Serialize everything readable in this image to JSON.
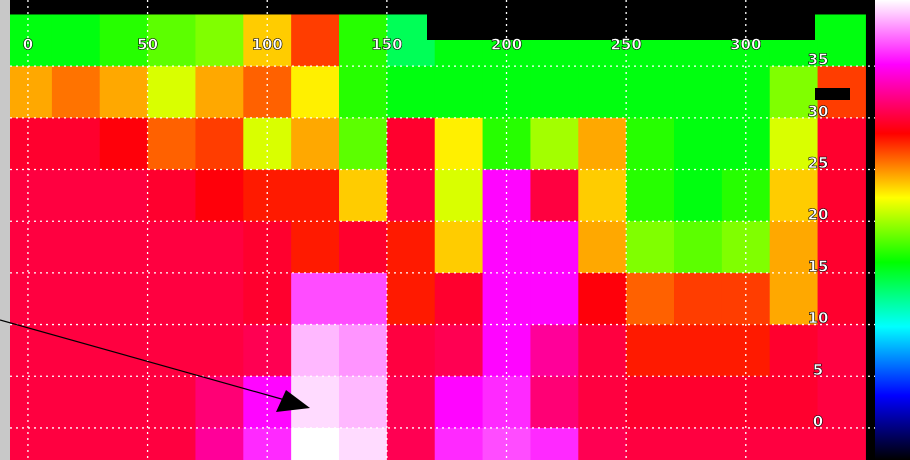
{
  "chart_data": {
    "type": "heatmap",
    "x": [
      0,
      20,
      40,
      60,
      80,
      100,
      120,
      140,
      160,
      180,
      200,
      220,
      240,
      260,
      280,
      300,
      320,
      340
    ],
    "y": [
      37.5,
      32.5,
      27.5,
      22.5,
      17.5,
      12.5,
      7.5,
      2.5,
      -2.5
    ],
    "z": [
      [
        0.42,
        0.42,
        0.45,
        0.48,
        0.5,
        0.6,
        0.68,
        0.45,
        0.38,
        0.42,
        0.42,
        0.42,
        0.42,
        0.42,
        0.42,
        0.42,
        0.42,
        0.42
      ],
      [
        0.62,
        0.65,
        0.62,
        0.55,
        0.62,
        0.66,
        0.58,
        0.45,
        0.42,
        0.42,
        0.42,
        0.42,
        0.42,
        0.42,
        0.42,
        0.42,
        0.5,
        0.68
      ],
      [
        0.74,
        0.74,
        0.72,
        0.66,
        0.68,
        0.55,
        0.62,
        0.48,
        0.74,
        0.58,
        0.45,
        0.52,
        0.62,
        0.45,
        0.42,
        0.42,
        0.55,
        0.74
      ],
      [
        0.75,
        0.75,
        0.75,
        0.74,
        0.72,
        0.7,
        0.7,
        0.6,
        0.75,
        0.55,
        0.86,
        0.75,
        0.6,
        0.45,
        0.42,
        0.45,
        0.6,
        0.74
      ],
      [
        0.75,
        0.75,
        0.75,
        0.75,
        0.75,
        0.74,
        0.7,
        0.74,
        0.7,
        0.6,
        0.86,
        0.86,
        0.62,
        0.5,
        0.48,
        0.5,
        0.62,
        0.74
      ],
      [
        0.75,
        0.75,
        0.75,
        0.75,
        0.75,
        0.74,
        0.9,
        0.9,
        0.7,
        0.74,
        0.86,
        0.86,
        0.72,
        0.66,
        0.68,
        0.68,
        0.62,
        0.74
      ],
      [
        0.75,
        0.75,
        0.75,
        0.75,
        0.75,
        0.76,
        0.96,
        0.94,
        0.75,
        0.76,
        0.86,
        0.8,
        0.75,
        0.7,
        0.7,
        0.7,
        0.74,
        0.75
      ],
      [
        0.75,
        0.75,
        0.75,
        0.75,
        0.78,
        0.86,
        0.98,
        0.96,
        0.76,
        0.86,
        0.88,
        0.78,
        0.75,
        0.74,
        0.74,
        0.74,
        0.74,
        0.75
      ],
      [
        0.75,
        0.75,
        0.75,
        0.75,
        0.8,
        0.88,
        1,
        0.98,
        0.76,
        0.88,
        0.9,
        0.88,
        0.76,
        0.75,
        0.75,
        0.75,
        0.75,
        0.75
      ]
    ],
    "colormap": [
      "#000000",
      "#0000ff",
      "#00ffff",
      "#00ff00",
      "#ffff00",
      "#ff0000",
      "#ff00ff",
      "#ffffff"
    ],
    "xlim": [
      -7.5,
      354
    ],
    "ylim": [
      -3.1,
      41.4
    ],
    "xticks": [
      0,
      50,
      100,
      150,
      200,
      250,
      300
    ],
    "yticks": [
      0,
      5,
      10,
      15,
      20,
      25,
      30,
      35
    ],
    "grid": true
  }
}
